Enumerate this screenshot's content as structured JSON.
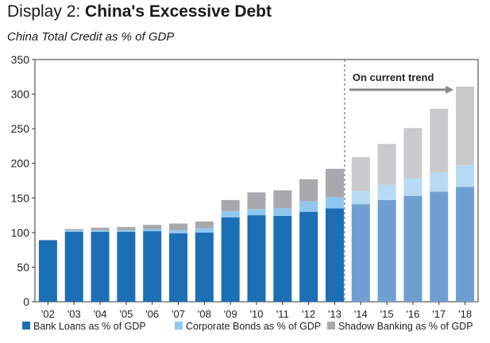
{
  "title_prefix": "Display 2: ",
  "title_bold": "China's Excessive Debt",
  "subtitle": "China Total Credit as % of GDP",
  "colors": {
    "bank_actual": "#1c6fb4",
    "bank_projected": "#6f9fd2",
    "corp_actual": "#8ec8f0",
    "corp_projected": "#b7dbf5",
    "shadow_actual": "#a7a9ac",
    "shadow_projected": "#c8cacc",
    "axis": "#333333",
    "grid": "#dddddd"
  },
  "chart_data": {
    "type": "bar",
    "stacked": true,
    "categories": [
      "'02",
      "'03",
      "'04",
      "'05",
      "'06",
      "'07",
      "'08",
      "'09",
      "'10",
      "'11",
      "'12",
      "'13",
      "'14",
      "'15",
      "'16",
      "'17",
      "'18"
    ],
    "series": [
      {
        "name": "Bank Loans as % of GDP",
        "values": [
          89,
          101,
          101,
          101,
          102,
          99,
          100,
          122,
          125,
          124,
          130,
          135,
          141,
          147,
          153,
          159,
          166
        ]
      },
      {
        "name": "Corporate Bonds as % of GDP",
        "values": [
          0,
          2,
          2,
          2,
          3,
          4,
          6,
          9,
          9,
          11,
          15,
          16,
          19,
          22,
          25,
          28,
          31
        ]
      },
      {
        "name": "Shadow Banking as % of GDP",
        "values": [
          0,
          2,
          4,
          5,
          6,
          10,
          10,
          16,
          24,
          26,
          32,
          41,
          49,
          59,
          73,
          92,
          114
        ]
      }
    ],
    "projection_start_index": 12,
    "projection_label": "On current trend",
    "ylim": [
      0,
      350
    ],
    "yticks": [
      0,
      50,
      100,
      150,
      200,
      250,
      300,
      350
    ],
    "grid": false,
    "legend_position": "bottom"
  }
}
